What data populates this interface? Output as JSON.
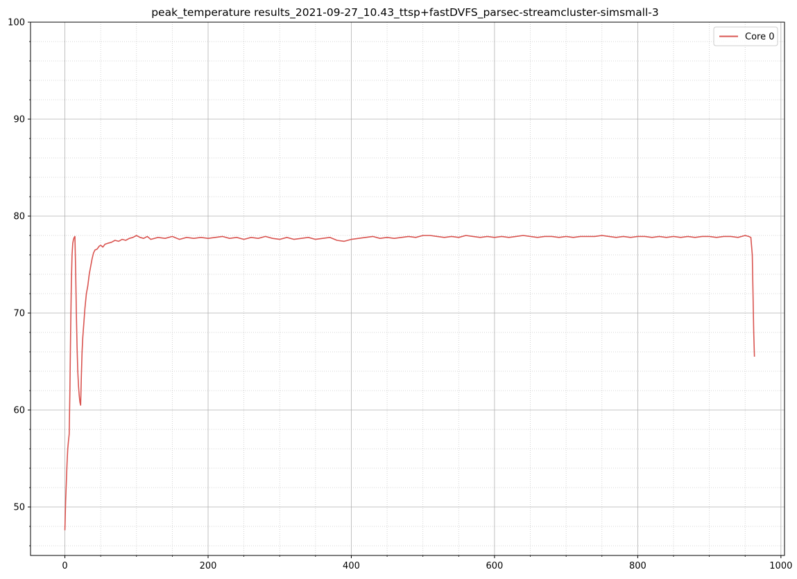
{
  "chart_data": {
    "type": "line",
    "title": "peak_temperature results_2021-09-27_10.43_ttsp+fastDVFS_parsec-streamcluster-simsmall-3",
    "xlabel": "",
    "ylabel": "",
    "xlim": [
      -48,
      1005
    ],
    "ylim": [
      45,
      100
    ],
    "x_ticks": [
      0,
      200,
      400,
      600,
      800,
      1000
    ],
    "y_ticks": [
      50,
      60,
      70,
      80,
      90,
      100
    ],
    "x_tick_labels": [
      "0",
      "200",
      "400",
      "600",
      "800",
      "1000"
    ],
    "y_tick_labels": [
      "50",
      "60",
      "70",
      "80",
      "90",
      "100"
    ],
    "x_minor_step": 50,
    "y_minor_step": 2,
    "grid": true,
    "legend_position": "top-right",
    "series": [
      {
        "name": "Core 0",
        "color": "#d9534f",
        "points": [
          [
            0,
            47.6
          ],
          [
            1,
            50.5
          ],
          [
            2,
            52.5
          ],
          [
            3,
            54.5
          ],
          [
            4,
            56.0
          ],
          [
            5,
            56.8
          ],
          [
            6,
            57.5
          ],
          [
            7,
            62.0
          ],
          [
            8,
            68.0
          ],
          [
            9,
            73.0
          ],
          [
            10,
            76.0
          ],
          [
            11,
            77.2
          ],
          [
            12,
            77.6
          ],
          [
            13,
            77.8
          ],
          [
            14,
            77.9
          ],
          [
            15,
            74.5
          ],
          [
            16,
            70.0
          ],
          [
            17,
            66.5
          ],
          [
            18,
            64.0
          ],
          [
            19,
            62.5
          ],
          [
            20,
            61.5
          ],
          [
            21,
            60.8
          ],
          [
            22,
            60.5
          ],
          [
            23,
            63.5
          ],
          [
            24,
            66.0
          ],
          [
            25,
            67.5
          ],
          [
            26,
            68.5
          ],
          [
            27,
            69.5
          ],
          [
            28,
            70.5
          ],
          [
            30,
            72.0
          ],
          [
            32,
            72.8
          ],
          [
            34,
            74.0
          ],
          [
            36,
            74.8
          ],
          [
            38,
            75.6
          ],
          [
            40,
            76.2
          ],
          [
            42,
            76.5
          ],
          [
            45,
            76.6
          ],
          [
            48,
            76.9
          ],
          [
            50,
            77.0
          ],
          [
            53,
            76.8
          ],
          [
            56,
            77.1
          ],
          [
            60,
            77.2
          ],
          [
            65,
            77.3
          ],
          [
            70,
            77.5
          ],
          [
            75,
            77.4
          ],
          [
            80,
            77.6
          ],
          [
            85,
            77.5
          ],
          [
            90,
            77.7
          ],
          [
            95,
            77.8
          ],
          [
            100,
            78.0
          ],
          [
            105,
            77.8
          ],
          [
            110,
            77.7
          ],
          [
            115,
            77.9
          ],
          [
            120,
            77.6
          ],
          [
            130,
            77.8
          ],
          [
            140,
            77.7
          ],
          [
            150,
            77.9
          ],
          [
            160,
            77.6
          ],
          [
            170,
            77.8
          ],
          [
            180,
            77.7
          ],
          [
            190,
            77.8
          ],
          [
            200,
            77.7
          ],
          [
            210,
            77.8
          ],
          [
            220,
            77.9
          ],
          [
            230,
            77.7
          ],
          [
            240,
            77.8
          ],
          [
            250,
            77.6
          ],
          [
            260,
            77.8
          ],
          [
            270,
            77.7
          ],
          [
            280,
            77.9
          ],
          [
            290,
            77.7
          ],
          [
            300,
            77.6
          ],
          [
            310,
            77.8
          ],
          [
            320,
            77.6
          ],
          [
            330,
            77.7
          ],
          [
            340,
            77.8
          ],
          [
            350,
            77.6
          ],
          [
            360,
            77.7
          ],
          [
            370,
            77.8
          ],
          [
            380,
            77.5
          ],
          [
            390,
            77.4
          ],
          [
            400,
            77.6
          ],
          [
            410,
            77.7
          ],
          [
            420,
            77.8
          ],
          [
            430,
            77.9
          ],
          [
            440,
            77.7
          ],
          [
            450,
            77.8
          ],
          [
            460,
            77.7
          ],
          [
            470,
            77.8
          ],
          [
            480,
            77.9
          ],
          [
            490,
            77.8
          ],
          [
            500,
            78.0
          ],
          [
            510,
            78.0
          ],
          [
            520,
            77.9
          ],
          [
            530,
            77.8
          ],
          [
            540,
            77.9
          ],
          [
            550,
            77.8
          ],
          [
            560,
            78.0
          ],
          [
            570,
            77.9
          ],
          [
            580,
            77.8
          ],
          [
            590,
            77.9
          ],
          [
            600,
            77.8
          ],
          [
            610,
            77.9
          ],
          [
            620,
            77.8
          ],
          [
            630,
            77.9
          ],
          [
            640,
            78.0
          ],
          [
            650,
            77.9
          ],
          [
            660,
            77.8
          ],
          [
            670,
            77.9
          ],
          [
            680,
            77.9
          ],
          [
            690,
            77.8
          ],
          [
            700,
            77.9
          ],
          [
            710,
            77.8
          ],
          [
            720,
            77.9
          ],
          [
            730,
            77.9
          ],
          [
            740,
            77.9
          ],
          [
            750,
            78.0
          ],
          [
            760,
            77.9
          ],
          [
            770,
            77.8
          ],
          [
            780,
            77.9
          ],
          [
            790,
            77.8
          ],
          [
            800,
            77.9
          ],
          [
            810,
            77.9
          ],
          [
            820,
            77.8
          ],
          [
            830,
            77.9
          ],
          [
            840,
            77.8
          ],
          [
            850,
            77.9
          ],
          [
            860,
            77.8
          ],
          [
            870,
            77.9
          ],
          [
            880,
            77.8
          ],
          [
            890,
            77.9
          ],
          [
            900,
            77.9
          ],
          [
            910,
            77.8
          ],
          [
            920,
            77.9
          ],
          [
            930,
            77.9
          ],
          [
            940,
            77.8
          ],
          [
            950,
            78.0
          ],
          [
            955,
            77.9
          ],
          [
            958,
            77.8
          ],
          [
            960,
            76.0
          ],
          [
            961,
            72.0
          ],
          [
            962,
            68.0
          ],
          [
            963,
            65.5
          ]
        ]
      }
    ]
  }
}
